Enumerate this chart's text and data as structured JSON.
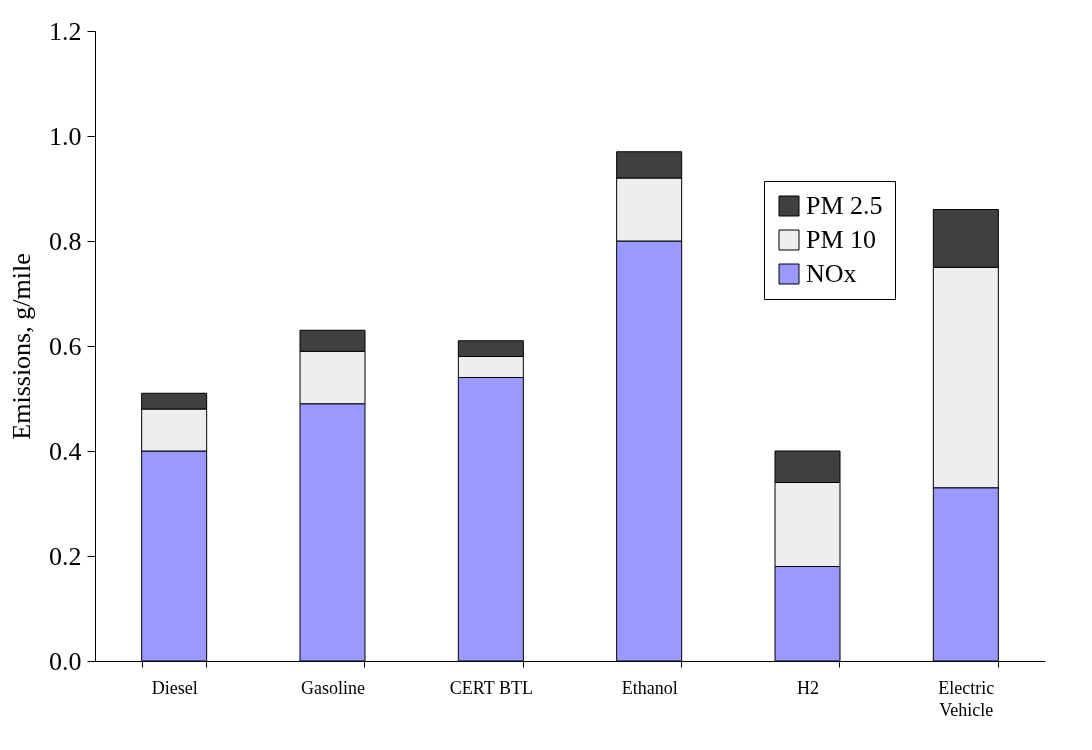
{
  "chart_data": {
    "type": "bar",
    "stacked": true,
    "ylabel": "Emissions, g/mile",
    "categories": [
      "Diesel",
      "Gasoline",
      "CERT BTL",
      "Ethanol",
      "H2",
      "Electric Vehicle"
    ],
    "series": [
      {
        "name": "NOx",
        "color": "#9999ff",
        "values": [
          0.4,
          0.49,
          0.54,
          0.8,
          0.18,
          0.33
        ]
      },
      {
        "name": "PM 10",
        "color": "#eeeeee",
        "values": [
          0.08,
          0.1,
          0.04,
          0.12,
          0.16,
          0.42
        ]
      },
      {
        "name": "PM 2.5",
        "color": "#404040",
        "values": [
          0.03,
          0.04,
          0.03,
          0.05,
          0.06,
          0.11
        ]
      }
    ],
    "ylim": [
      0,
      1.2
    ],
    "yticks": [
      {
        "value": 0,
        "label": "0.0"
      },
      {
        "value": 0.2,
        "label": "0.2"
      },
      {
        "value": 0.4,
        "label": "0.4"
      },
      {
        "value": 0.6,
        "label": "0.6"
      },
      {
        "value": 0.8,
        "label": "0.8"
      },
      {
        "value": 1,
        "label": "1.0"
      },
      {
        "value": 1.2,
        "label": "1.2"
      }
    ],
    "grid": false,
    "legend": "top right"
  }
}
